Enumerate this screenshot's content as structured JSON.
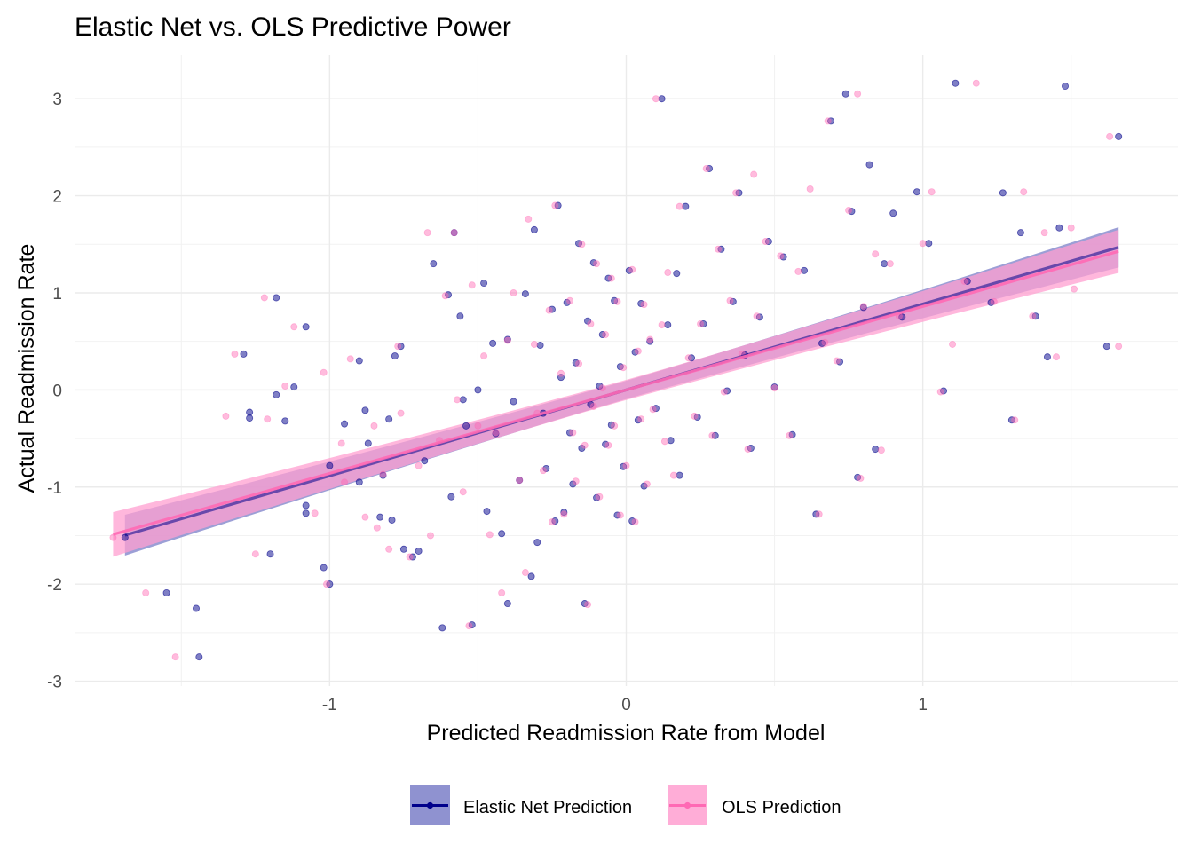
{
  "chart_data": {
    "type": "scatter",
    "title": "Elastic Net vs. OLS Predictive Power",
    "xlabel": "Predicted Readmission Rate from Model",
    "ylabel": "Actual Readmission Rate",
    "xlim": [
      -1.86,
      1.86
    ],
    "ylim": [
      -3.05,
      3.45
    ],
    "x_ticks": [
      -1,
      0,
      1
    ],
    "y_ticks": [
      -3,
      -2,
      -1,
      0,
      1,
      2,
      3
    ],
    "grid": true,
    "legend_position": "bottom",
    "series": [
      {
        "name": "Elastic Net Prediction",
        "color": "#00008B",
        "ribbon_color": "#7b7fc8",
        "fit": {
          "slope": 0.885,
          "intercept": 0.0
        },
        "ci_halfwidth": 0.21,
        "points": [
          [
            -1.69,
            -1.52
          ],
          [
            -1.55,
            -2.09
          ],
          [
            -1.45,
            -2.25
          ],
          [
            -1.44,
            -2.75
          ],
          [
            -1.29,
            0.37
          ],
          [
            -1.27,
            -0.23
          ],
          [
            -1.27,
            -0.29
          ],
          [
            -1.2,
            -1.69
          ],
          [
            -1.18,
            0.95
          ],
          [
            -1.18,
            -0.05
          ],
          [
            -1.15,
            -0.32
          ],
          [
            -1.12,
            0.03
          ],
          [
            -1.08,
            0.65
          ],
          [
            -1.08,
            -1.27
          ],
          [
            -1.08,
            -1.19
          ],
          [
            -1.02,
            -1.83
          ],
          [
            -1.0,
            -2.0
          ],
          [
            -1.0,
            -0.78
          ],
          [
            -0.95,
            -0.35
          ],
          [
            -0.9,
            0.3
          ],
          [
            -0.9,
            -0.95
          ],
          [
            -0.88,
            -0.21
          ],
          [
            -0.87,
            -0.55
          ],
          [
            -0.83,
            -1.31
          ],
          [
            -0.82,
            -0.88
          ],
          [
            -0.8,
            -0.3
          ],
          [
            -0.79,
            -1.34
          ],
          [
            -0.78,
            0.35
          ],
          [
            -0.76,
            0.45
          ],
          [
            -0.75,
            -1.64
          ],
          [
            -0.72,
            -1.72
          ],
          [
            -0.7,
            -1.66
          ],
          [
            -0.68,
            -0.73
          ],
          [
            -0.65,
            1.3
          ],
          [
            -0.62,
            -2.45
          ],
          [
            -0.6,
            0.98
          ],
          [
            -0.59,
            -1.1
          ],
          [
            -0.58,
            1.62
          ],
          [
            -0.56,
            0.76
          ],
          [
            -0.55,
            -0.1
          ],
          [
            -0.54,
            -0.37
          ],
          [
            -0.52,
            -2.42
          ],
          [
            -0.5,
            0.0
          ],
          [
            -0.48,
            1.1
          ],
          [
            -0.47,
            -1.25
          ],
          [
            -0.45,
            0.48
          ],
          [
            -0.44,
            -0.45
          ],
          [
            -0.42,
            -1.48
          ],
          [
            -0.4,
            -2.2
          ],
          [
            -0.4,
            0.52
          ],
          [
            -0.38,
            -0.12
          ],
          [
            -0.36,
            -0.93
          ],
          [
            -0.34,
            0.99
          ],
          [
            -0.32,
            -1.92
          ],
          [
            -0.31,
            1.65
          ],
          [
            -0.3,
            -1.57
          ],
          [
            -0.29,
            0.46
          ],
          [
            -0.28,
            -0.24
          ],
          [
            -0.27,
            -0.81
          ],
          [
            -0.25,
            0.83
          ],
          [
            -0.24,
            -1.35
          ],
          [
            -0.23,
            1.9
          ],
          [
            -0.22,
            0.13
          ],
          [
            -0.21,
            -1.26
          ],
          [
            -0.2,
            0.9
          ],
          [
            -0.19,
            -0.44
          ],
          [
            -0.18,
            -0.97
          ],
          [
            -0.17,
            0.28
          ],
          [
            -0.16,
            1.51
          ],
          [
            -0.15,
            -0.6
          ],
          [
            -0.14,
            -2.2
          ],
          [
            -0.13,
            0.71
          ],
          [
            -0.12,
            -0.15
          ],
          [
            -0.11,
            1.31
          ],
          [
            -0.1,
            -1.11
          ],
          [
            -0.09,
            0.04
          ],
          [
            -0.08,
            0.57
          ],
          [
            -0.07,
            -0.56
          ],
          [
            -0.06,
            1.15
          ],
          [
            -0.05,
            -0.36
          ],
          [
            -0.04,
            0.92
          ],
          [
            -0.03,
            -1.29
          ],
          [
            -0.02,
            0.24
          ],
          [
            -0.01,
            -0.79
          ],
          [
            0.01,
            1.23
          ],
          [
            0.02,
            -1.35
          ],
          [
            0.03,
            0.39
          ],
          [
            0.04,
            -0.31
          ],
          [
            0.05,
            0.89
          ],
          [
            0.06,
            -0.99
          ],
          [
            0.08,
            0.5
          ],
          [
            0.1,
            -0.19
          ],
          [
            0.12,
            3.0
          ],
          [
            0.14,
            0.67
          ],
          [
            0.15,
            -0.52
          ],
          [
            0.17,
            1.2
          ],
          [
            0.18,
            -0.88
          ],
          [
            0.2,
            1.89
          ],
          [
            0.22,
            0.33
          ],
          [
            0.24,
            -0.28
          ],
          [
            0.26,
            0.68
          ],
          [
            0.28,
            2.28
          ],
          [
            0.3,
            -0.47
          ],
          [
            0.32,
            1.45
          ],
          [
            0.34,
            -0.01
          ],
          [
            0.36,
            0.91
          ],
          [
            0.38,
            2.03
          ],
          [
            0.4,
            0.36
          ],
          [
            0.42,
            -0.6
          ],
          [
            0.45,
            0.75
          ],
          [
            0.48,
            1.53
          ],
          [
            0.5,
            0.03
          ],
          [
            0.53,
            1.37
          ],
          [
            0.56,
            -0.46
          ],
          [
            0.6,
            1.23
          ],
          [
            0.64,
            -1.28
          ],
          [
            0.66,
            0.48
          ],
          [
            0.69,
            2.77
          ],
          [
            0.72,
            0.29
          ],
          [
            0.74,
            3.05
          ],
          [
            0.76,
            1.84
          ],
          [
            0.78,
            -0.9
          ],
          [
            0.8,
            0.85
          ],
          [
            0.82,
            2.32
          ],
          [
            0.84,
            -0.61
          ],
          [
            0.87,
            1.3
          ],
          [
            0.9,
            1.82
          ],
          [
            0.93,
            0.75
          ],
          [
            0.98,
            2.04
          ],
          [
            1.02,
            1.51
          ],
          [
            1.07,
            -0.01
          ],
          [
            1.11,
            3.16
          ],
          [
            1.15,
            1.12
          ],
          [
            1.23,
            0.9
          ],
          [
            1.27,
            2.03
          ],
          [
            1.3,
            -0.31
          ],
          [
            1.33,
            1.62
          ],
          [
            1.38,
            0.76
          ],
          [
            1.42,
            0.34
          ],
          [
            1.46,
            1.67
          ],
          [
            1.48,
            3.13
          ],
          [
            1.62,
            0.45
          ],
          [
            1.66,
            2.61
          ]
        ]
      },
      {
        "name": "OLS Prediction",
        "color": "#FF69B4",
        "ribbon_color": "#ff9fd0",
        "fit": {
          "slope": 0.86,
          "intercept": 0.0
        },
        "ci_halfwidth": 0.23,
        "points": [
          [
            -1.73,
            -1.52
          ],
          [
            -1.62,
            -2.09
          ],
          [
            -1.52,
            -2.75
          ],
          [
            -1.35,
            -0.27
          ],
          [
            -1.32,
            0.37
          ],
          [
            -1.25,
            -1.69
          ],
          [
            -1.22,
            0.95
          ],
          [
            -1.21,
            -0.3
          ],
          [
            -1.15,
            0.04
          ],
          [
            -1.12,
            0.65
          ],
          [
            -1.05,
            -1.27
          ],
          [
            -1.02,
            0.18
          ],
          [
            -1.01,
            -2.0
          ],
          [
            -0.96,
            -0.55
          ],
          [
            -0.95,
            -0.95
          ],
          [
            -0.93,
            0.32
          ],
          [
            -0.88,
            -1.31
          ],
          [
            -0.85,
            -0.37
          ],
          [
            -0.84,
            -1.42
          ],
          [
            -0.82,
            -0.87
          ],
          [
            -0.8,
            -1.64
          ],
          [
            -0.77,
            0.45
          ],
          [
            -0.76,
            -0.24
          ],
          [
            -0.73,
            -1.72
          ],
          [
            -0.7,
            -0.78
          ],
          [
            -0.67,
            1.62
          ],
          [
            -0.66,
            -1.5
          ],
          [
            -0.63,
            -0.52
          ],
          [
            -0.61,
            0.97
          ],
          [
            -0.58,
            1.62
          ],
          [
            -0.57,
            -0.1
          ],
          [
            -0.55,
            -1.05
          ],
          [
            -0.53,
            -2.43
          ],
          [
            -0.52,
            1.08
          ],
          [
            -0.5,
            -0.37
          ],
          [
            -0.48,
            0.35
          ],
          [
            -0.46,
            -1.49
          ],
          [
            -0.44,
            -0.44
          ],
          [
            -0.42,
            -2.09
          ],
          [
            -0.4,
            0.51
          ],
          [
            -0.38,
            1.0
          ],
          [
            -0.36,
            -0.93
          ],
          [
            -0.34,
            -1.88
          ],
          [
            -0.33,
            1.76
          ],
          [
            -0.31,
            0.47
          ],
          [
            -0.3,
            -0.24
          ],
          [
            -0.28,
            -0.83
          ],
          [
            -0.26,
            0.82
          ],
          [
            -0.25,
            -1.36
          ],
          [
            -0.24,
            1.9
          ],
          [
            -0.22,
            0.17
          ],
          [
            -0.21,
            -1.28
          ],
          [
            -0.19,
            0.92
          ],
          [
            -0.18,
            -0.44
          ],
          [
            -0.17,
            -0.94
          ],
          [
            -0.16,
            0.27
          ],
          [
            -0.15,
            1.5
          ],
          [
            -0.14,
            -0.57
          ],
          [
            -0.13,
            -2.21
          ],
          [
            -0.12,
            0.68
          ],
          [
            -0.11,
            -0.17
          ],
          [
            -0.1,
            1.3
          ],
          [
            -0.09,
            -1.1
          ],
          [
            -0.08,
            0.02
          ],
          [
            -0.07,
            0.57
          ],
          [
            -0.06,
            -0.57
          ],
          [
            -0.05,
            1.15
          ],
          [
            -0.04,
            -0.37
          ],
          [
            -0.03,
            0.91
          ],
          [
            -0.02,
            -1.29
          ],
          [
            -0.01,
            0.23
          ],
          [
            0.0,
            -0.78
          ],
          [
            0.02,
            1.24
          ],
          [
            0.03,
            -1.36
          ],
          [
            0.04,
            0.4
          ],
          [
            0.05,
            -0.3
          ],
          [
            0.06,
            0.88
          ],
          [
            0.07,
            -0.97
          ],
          [
            0.08,
            0.52
          ],
          [
            0.09,
            -0.2
          ],
          [
            0.1,
            3.0
          ],
          [
            0.12,
            0.67
          ],
          [
            0.13,
            -0.53
          ],
          [
            0.14,
            1.21
          ],
          [
            0.16,
            -0.88
          ],
          [
            0.18,
            1.89
          ],
          [
            0.21,
            0.33
          ],
          [
            0.23,
            -0.27
          ],
          [
            0.25,
            0.68
          ],
          [
            0.27,
            2.28
          ],
          [
            0.29,
            -0.47
          ],
          [
            0.31,
            1.45
          ],
          [
            0.33,
            -0.02
          ],
          [
            0.35,
            0.92
          ],
          [
            0.37,
            2.03
          ],
          [
            0.39,
            0.37
          ],
          [
            0.41,
            -0.61
          ],
          [
            0.43,
            2.22
          ],
          [
            0.44,
            0.76
          ],
          [
            0.47,
            1.53
          ],
          [
            0.5,
            0.02
          ],
          [
            0.52,
            1.38
          ],
          [
            0.55,
            -0.47
          ],
          [
            0.58,
            1.22
          ],
          [
            0.62,
            2.07
          ],
          [
            0.65,
            -1.28
          ],
          [
            0.67,
            0.49
          ],
          [
            0.68,
            2.77
          ],
          [
            0.71,
            0.3
          ],
          [
            0.75,
            1.85
          ],
          [
            0.78,
            3.05
          ],
          [
            0.79,
            -0.91
          ],
          [
            0.8,
            0.86
          ],
          [
            0.84,
            1.4
          ],
          [
            0.86,
            -0.62
          ],
          [
            0.89,
            1.3
          ],
          [
            0.92,
            0.76
          ],
          [
            1.0,
            1.51
          ],
          [
            1.03,
            2.04
          ],
          [
            1.06,
            -0.02
          ],
          [
            1.1,
            0.47
          ],
          [
            1.14,
            1.12
          ],
          [
            1.18,
            3.16
          ],
          [
            1.24,
            0.91
          ],
          [
            1.31,
            -0.31
          ],
          [
            1.34,
            2.04
          ],
          [
            1.37,
            0.76
          ],
          [
            1.41,
            1.62
          ],
          [
            1.45,
            0.34
          ],
          [
            1.5,
            1.67
          ],
          [
            1.51,
            1.04
          ],
          [
            1.63,
            2.61
          ],
          [
            1.66,
            0.45
          ]
        ]
      }
    ]
  }
}
